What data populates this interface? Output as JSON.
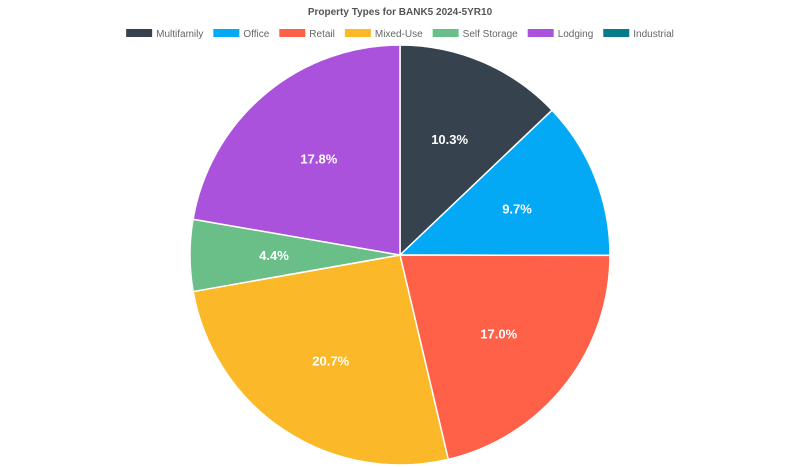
{
  "chart_data": {
    "type": "pie",
    "title": "Property Types for BANK5 2024-5YR10",
    "legend_position": "top",
    "slices": [
      {
        "label": "Multifamily",
        "value": 10.3,
        "display": "10.3%",
        "color": "#36424e"
      },
      {
        "label": "Office",
        "value": 9.7,
        "display": "9.7%",
        "color": "#03a9f4"
      },
      {
        "label": "Retail",
        "value": 17.0,
        "display": "17.0%",
        "color": "#ff6048"
      },
      {
        "label": "Mixed-Use",
        "value": 20.7,
        "display": "20.7%",
        "color": "#fbb829"
      },
      {
        "label": "Self Storage",
        "value": 4.4,
        "display": "4.4%",
        "color": "#6abf88"
      },
      {
        "label": "Lodging",
        "value": 17.8,
        "display": "17.8%",
        "color": "#ab52dc"
      },
      {
        "label": "Industrial",
        "value": 0,
        "display": "",
        "color": "#067b8c"
      }
    ]
  }
}
